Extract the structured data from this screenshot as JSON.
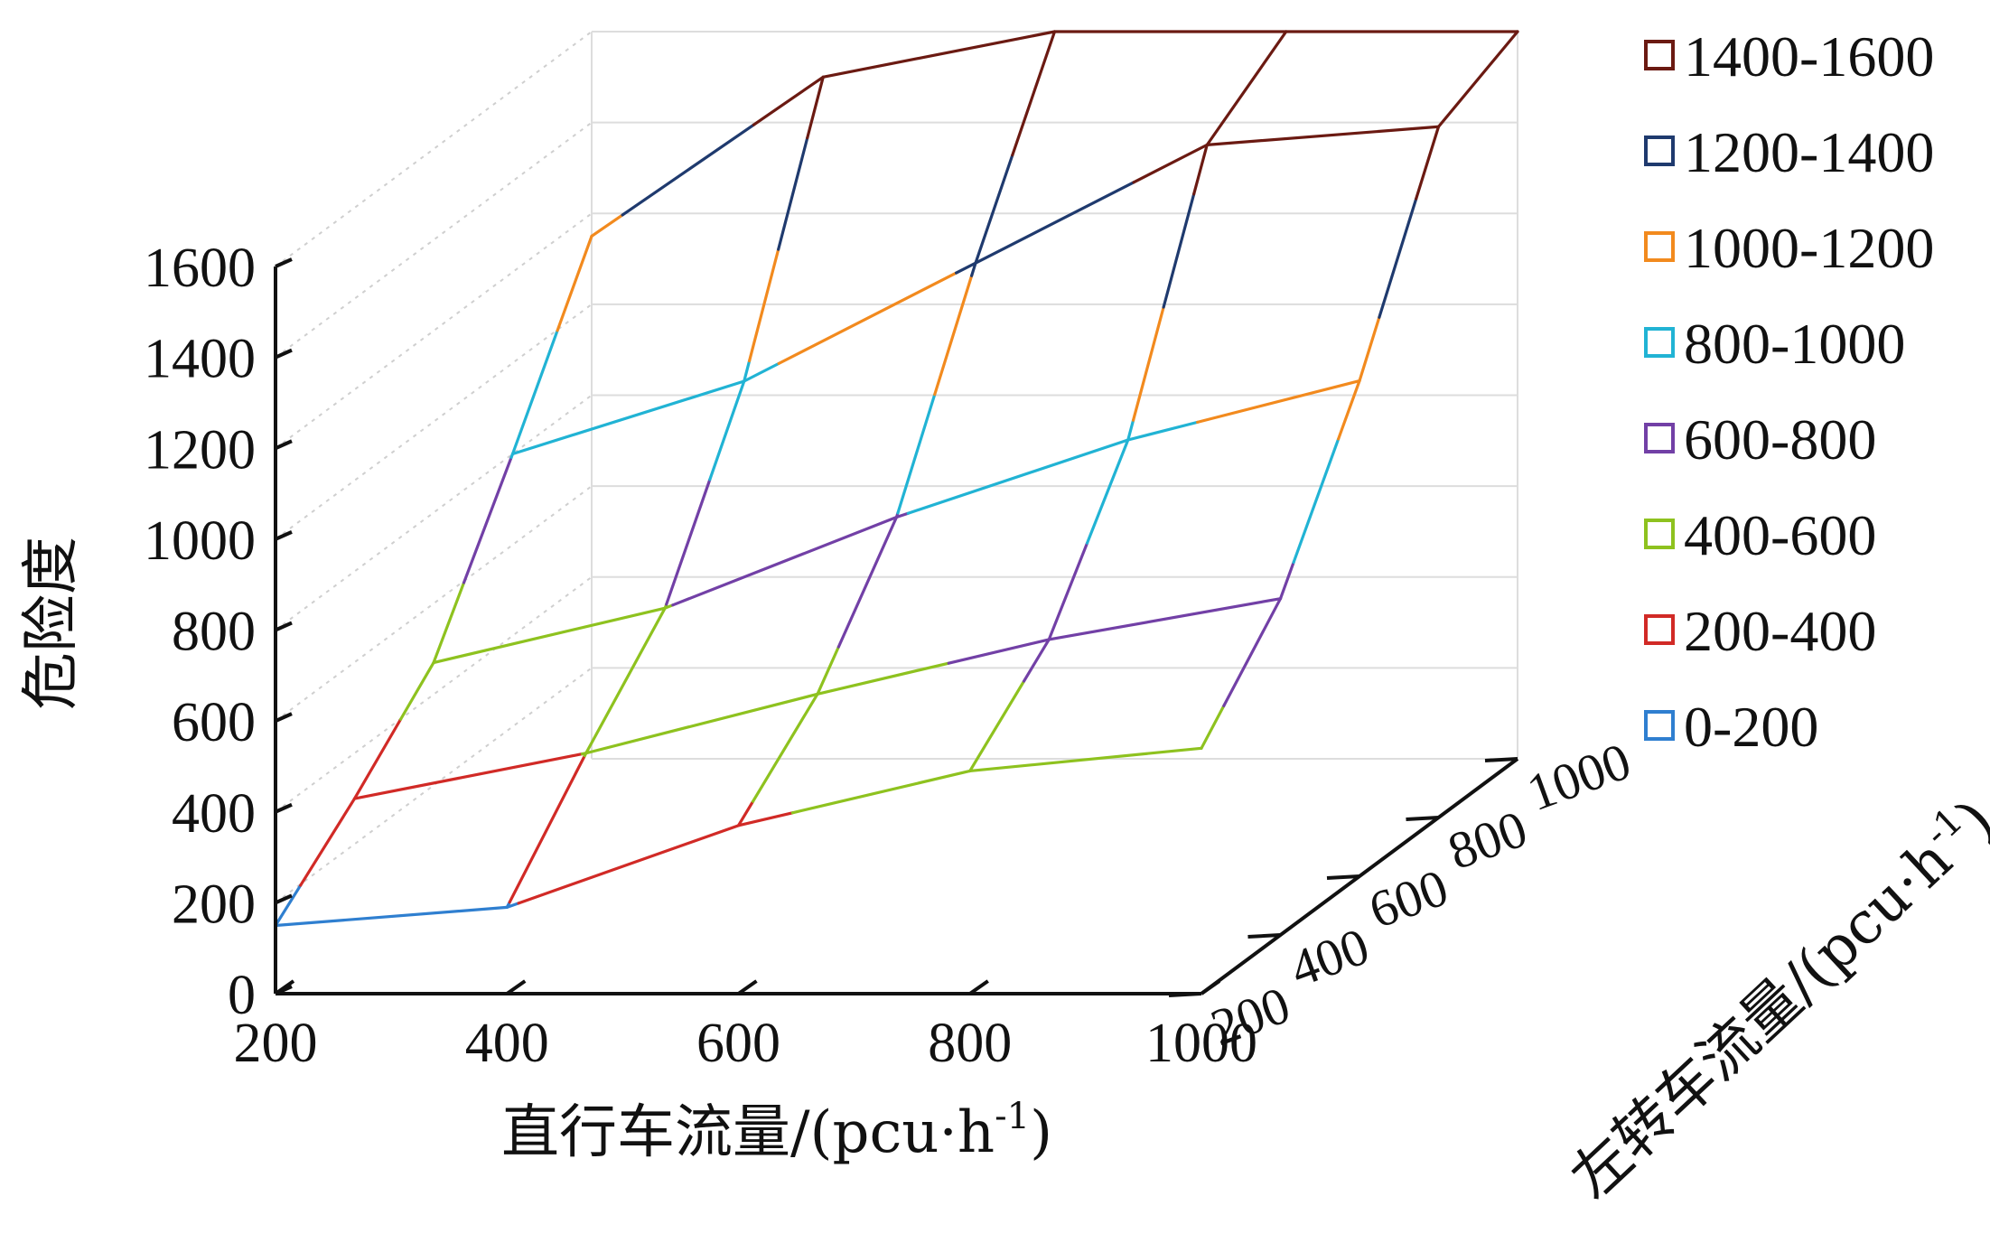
{
  "chart_data": {
    "type": "surface3d",
    "title": "",
    "zlabel": "危险度",
    "xlabel_prefix": "直行车流量/(pcu·h",
    "xlabel_sup": "-1",
    "xlabel_suffix": ")",
    "ylabel_prefix": "左转车流量/(pcu·h",
    "ylabel_sup": "-1",
    "ylabel_suffix": ")",
    "x_ticks": [
      "200",
      "400",
      "600",
      "800",
      "1000"
    ],
    "y_ticks": [
      "200",
      "400",
      "600",
      "800",
      "1000"
    ],
    "z_ticks": [
      "0",
      "200",
      "400",
      "600",
      "800",
      "1000",
      "1200",
      "1400",
      "1600"
    ],
    "xlim": [
      200,
      1000
    ],
    "ylim": [
      200,
      1000
    ],
    "zlim": [
      0,
      1600
    ],
    "x": [
      200,
      400,
      600,
      800,
      1000
    ],
    "y": [
      200,
      400,
      600,
      800,
      1000
    ],
    "z": [
      [
        150,
        190,
        370,
        490,
        540
      ],
      [
        300,
        400,
        530,
        650,
        740
      ],
      [
        470,
        590,
        790,
        960,
        1090
      ],
      [
        800,
        960,
        1220,
        1480,
        1520
      ],
      [
        1150,
        1500,
        1600,
        1600,
        1600
      ]
    ],
    "legend": [
      {
        "label": "1400-1600",
        "color": "#6b1a12"
      },
      {
        "label": "1200-1400",
        "color": "#1f3a6e"
      },
      {
        "label": "1000-1200",
        "color": "#f28a1e"
      },
      {
        "label": "800-1000",
        "color": "#21b3d4"
      },
      {
        "label": "600-800",
        "color": "#7240a6"
      },
      {
        "label": "400-600",
        "color": "#8ec21f"
      },
      {
        "label": "200-400",
        "color": "#d12a26"
      },
      {
        "label": "0-200",
        "color": "#2f7fd0"
      }
    ],
    "legend_position": "right",
    "grid": true
  }
}
